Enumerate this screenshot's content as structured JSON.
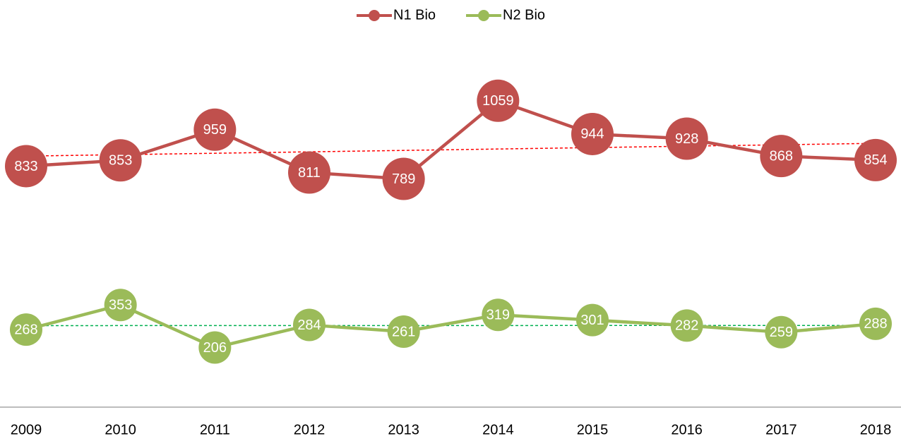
{
  "chart_data": {
    "type": "line",
    "categories": [
      "2009",
      "2010",
      "2011",
      "2012",
      "2013",
      "2014",
      "2015",
      "2016",
      "2017",
      "2018"
    ],
    "series": [
      {
        "name": "N1 Bio",
        "color": "#c0504d",
        "trend_color": "#ff0000",
        "values": [
          833,
          853,
          959,
          811,
          789,
          1059,
          944,
          928,
          868,
          854
        ]
      },
      {
        "name": "N2 Bio",
        "color": "#9bbb59",
        "trend_color": "#00b050",
        "values": [
          268,
          353,
          206,
          284,
          261,
          319,
          301,
          282,
          259,
          288
        ]
      }
    ],
    "ylim": [
      0,
      1400
    ],
    "trendline": true,
    "legend": "top",
    "data_labels": true
  }
}
